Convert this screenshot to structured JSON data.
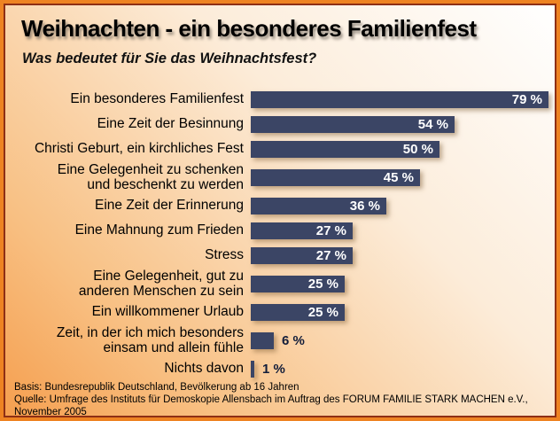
{
  "header": {
    "title": "Weihnachten - ein besonderes Familienfest",
    "subtitle": "Was bedeutet für Sie das Weihnachtsfest?"
  },
  "chart_data": {
    "type": "bar",
    "orientation": "horizontal",
    "title": "Weihnachten - ein besonderes Familienfest",
    "subtitle": "Was bedeutet für Sie das Weihnachtsfest?",
    "unit": "%",
    "xlim": [
      0,
      100
    ],
    "grid": false,
    "legend": false,
    "bar_color": "#3b4565",
    "categories": [
      "Ein besonderes Familienfest",
      "Eine Zeit der Besinnung",
      "Christi Geburt, ein kirchliches Fest",
      "Eine Gelegenheit zu schenken\nund beschenkt zu werden",
      "Eine Zeit der Erinnerung",
      "Eine Mahnung zum Frieden",
      "Stress",
      "Eine Gelegenheit, gut zu\nanderen Menschen zu sein",
      "Ein willkommener Urlaub",
      "Zeit, in der ich mich besonders\neinsam und allein fühle",
      "Nichts davon"
    ],
    "values": [
      79,
      54,
      50,
      45,
      36,
      27,
      27,
      25,
      25,
      6,
      1
    ],
    "value_labels": [
      "79 %",
      "54 %",
      "50 %",
      "45 %",
      "36 %",
      "27 %",
      "27 %",
      "25 %",
      "25 %",
      "6 %",
      "1 %"
    ]
  },
  "footer": {
    "basis": "Basis: Bundesrepublik Deutschland, Bevölkerung ab 16 Jahren",
    "quelle": "Quelle: Umfrage des Instituts für Demoskopie Allensbach im Auftrag des FORUM FAMILIE STARK MACHEN e.V., November 2005"
  },
  "colors": {
    "border_outer": "#ee8322",
    "border_inner": "#8e2f15",
    "background_gradient_from": "#ffffff",
    "background_gradient_to": "#f59f4f",
    "bar": "#3b4565",
    "value_label_inside": "#ffffff",
    "value_label_outside": "#131d3a"
  }
}
